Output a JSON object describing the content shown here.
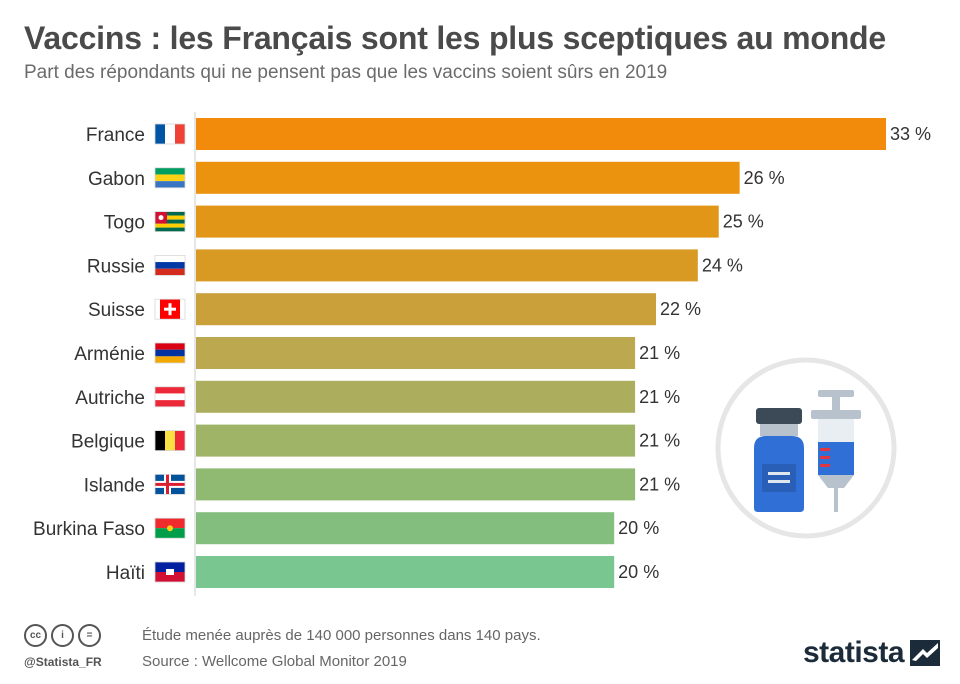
{
  "header": {
    "title": "Vaccins : les Français sont les plus sceptiques au monde",
    "subtitle": "Part des répondants qui ne pensent pas que les vaccins soient sûrs en 2019"
  },
  "chart_data": {
    "type": "bar",
    "orientation": "horizontal",
    "categories": [
      "France",
      "Gabon",
      "Togo",
      "Russie",
      "Suisse",
      "Arménie",
      "Autriche",
      "Belgique",
      "Islande",
      "Burkina Faso",
      "Haïti"
    ],
    "values": [
      33,
      26,
      25,
      24,
      22,
      21,
      21,
      21,
      21,
      20,
      20
    ],
    "value_labels": [
      "33 %",
      "26 %",
      "25 %",
      "24 %",
      "22 %",
      "21 %",
      "21 %",
      "21 %",
      "21 %",
      "20 %",
      "20 %"
    ],
    "unit": "%",
    "xlim": [
      0,
      33
    ],
    "grid": false,
    "bar_colors": [
      "#f28a0c",
      "#eb920f",
      "#e29618",
      "#d89a23",
      "#c9a03a",
      "#bca84f",
      "#acae5e",
      "#a0b467",
      "#90b972",
      "#83be7f",
      "#79c690"
    ],
    "flag_icons": [
      "flag-france-icon",
      "flag-gabon-icon",
      "flag-togo-icon",
      "flag-russia-icon",
      "flag-switzerland-icon",
      "flag-armenia-icon",
      "flag-austria-icon",
      "flag-belgium-icon",
      "flag-iceland-icon",
      "flag-burkina-faso-icon",
      "flag-haiti-icon"
    ]
  },
  "illustration": {
    "icon": "vaccine-vial-and-syringe-icon",
    "colors": {
      "circle": "#e6e6e6",
      "blue": "#2f6fd6",
      "cap": "#3c4a57",
      "metal": "#b8c2cc",
      "red": "#e0373e"
    }
  },
  "footer": {
    "license_icons": [
      "cc-icon",
      "by-icon",
      "nd-icon"
    ],
    "license_labels": [
      "cc",
      "i",
      "="
    ],
    "handle": "@Statista_FR",
    "note": "Étude menée auprès de 140 000 personnes dans 140 pays.",
    "source": "Source : Wellcome Global Monitor 2019",
    "brand": "statista",
    "brand_icon": "statista-logo-icon"
  }
}
